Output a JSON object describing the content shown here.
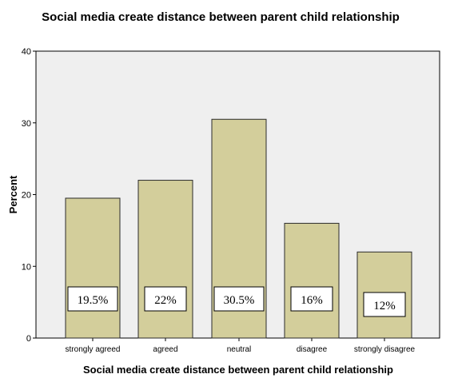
{
  "chart_data": {
    "type": "bar",
    "title": "Social media create distance between parent child relationship",
    "xlabel": "Social media create distance between parent child relationship",
    "ylabel": "Percent",
    "categories": [
      "strongly agreed",
      "agreed",
      "neutral",
      "disagree",
      "strongly disagree"
    ],
    "values": [
      19.5,
      22,
      30.5,
      16,
      12
    ],
    "data_labels": [
      "19.5%",
      "22%",
      "30.5%",
      "16%",
      "12%"
    ],
    "ylim": [
      0,
      40
    ],
    "yticks": [
      0,
      10,
      20,
      30,
      40
    ],
    "grid": false,
    "legend": "none",
    "colors": {
      "bar_fill": "#d3ce9b",
      "bar_stroke": "#2b2b2b",
      "plot_background": "#efefef",
      "label_box": "#ffffff"
    }
  }
}
